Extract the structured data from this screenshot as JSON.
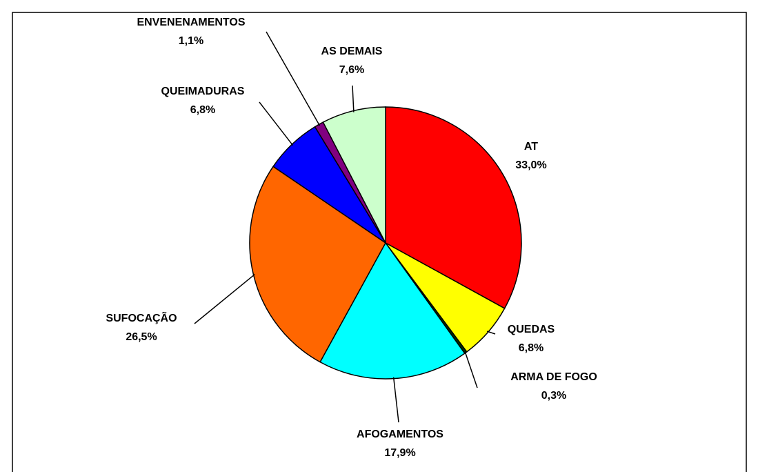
{
  "chart_data": {
    "type": "pie",
    "categories": [
      "AT",
      "QUEDAS",
      "ARMA DE FOGO",
      "AFOGAMENTOS",
      "SUFOCAÇÃO",
      "QUEIMADURAS",
      "ENVENENAMENTOS",
      "AS DEMAIS"
    ],
    "values": [
      33.0,
      6.8,
      0.3,
      17.9,
      26.5,
      6.8,
      1.1,
      7.6
    ],
    "value_labels": [
      "33,0%",
      "6,8%",
      "0,3%",
      "17,9%",
      "26,5%",
      "6,8%",
      "1,1%",
      "7,6%"
    ],
    "colors": [
      "#ff0000",
      "#ffff00",
      "#003300",
      "#00ffff",
      "#ff6600",
      "#0000ff",
      "#800080",
      "#ccffcc"
    ]
  }
}
